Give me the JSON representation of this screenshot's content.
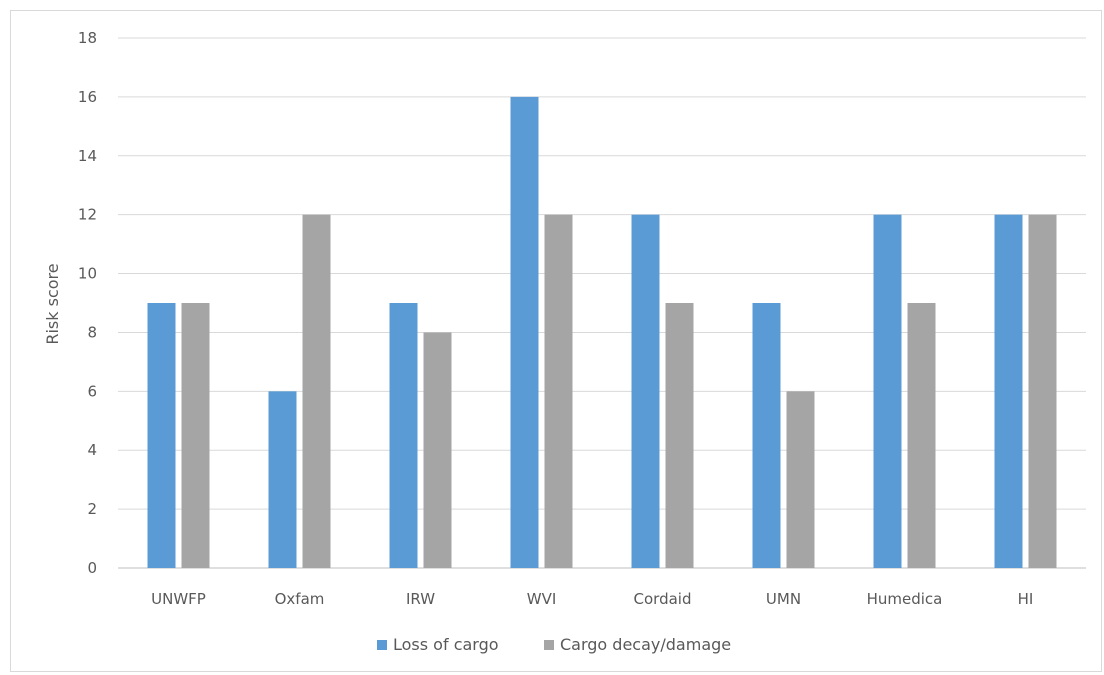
{
  "chart_data": {
    "type": "bar",
    "title": "",
    "xlabel": "",
    "ylabel": "Risk score",
    "ylim": [
      0,
      18
    ],
    "ytick_step": 2,
    "grid": true,
    "legend_position": "bottom",
    "categories": [
      "UNWFP",
      "Oxfam",
      "IRW",
      "WVI",
      "Cordaid",
      "UMN",
      "Humedica",
      "HI"
    ],
    "series": [
      {
        "name": "Loss of cargo",
        "color": "#5b9bd5",
        "values": [
          9,
          6,
          9,
          16,
          12,
          9,
          12,
          12
        ]
      },
      {
        "name": "Cargo decay/damage",
        "color": "#a5a5a5",
        "values": [
          9,
          12,
          8,
          12,
          9,
          6,
          9,
          12
        ]
      }
    ]
  }
}
